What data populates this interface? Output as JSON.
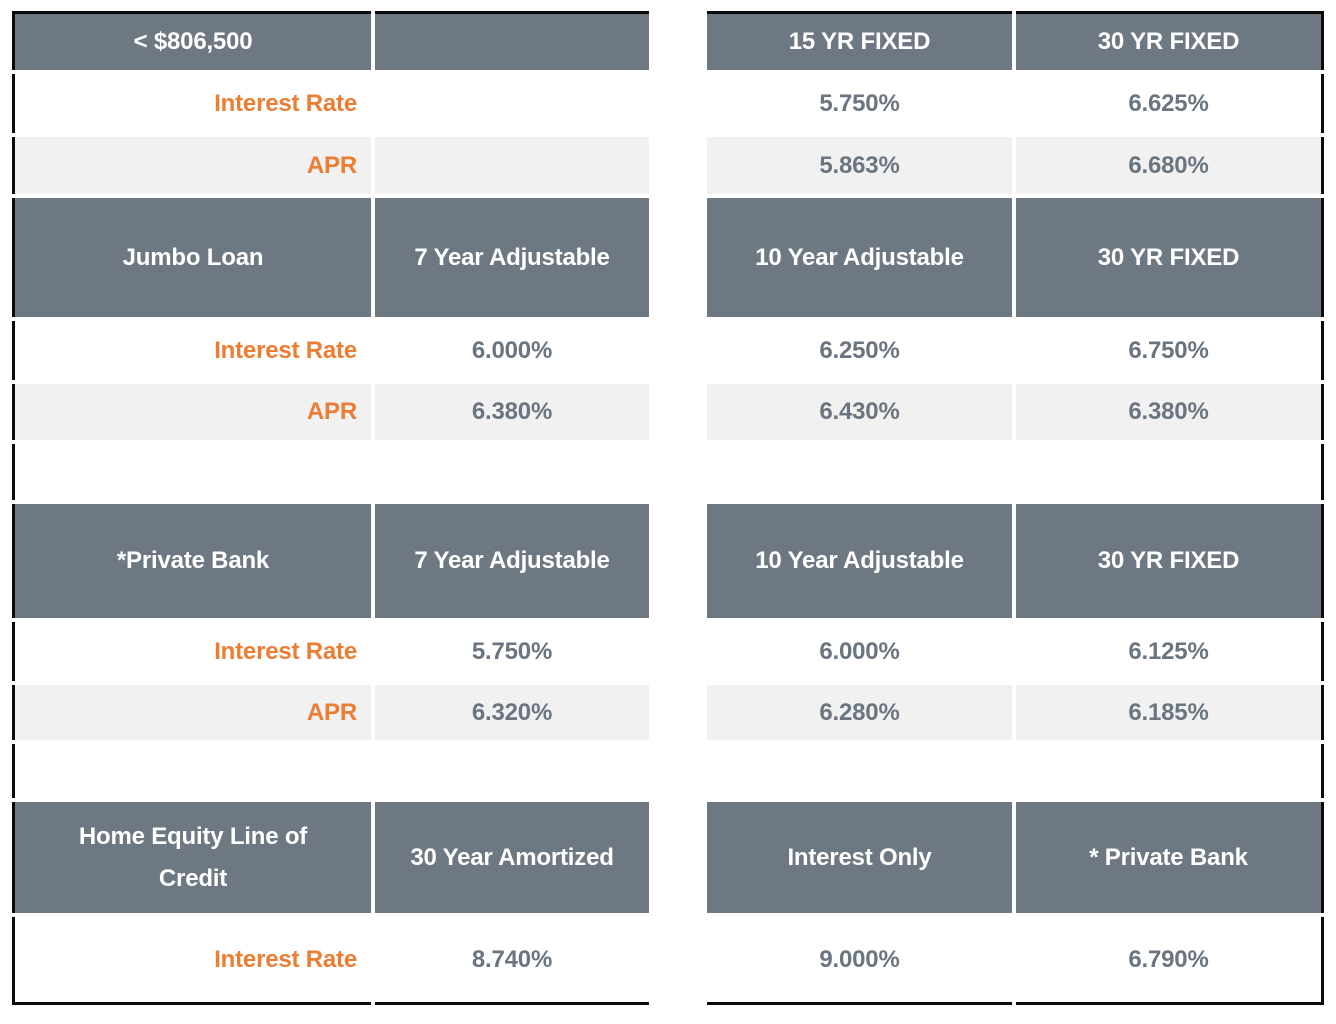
{
  "theme": {
    "header_bg": "#6E7883",
    "header_text": "#FFFFFF",
    "label_orange": "#EC7D33",
    "value_gray": "#6B7580",
    "alt_row_bg": "#F1F1F2",
    "outer_border": "#0A0A0A",
    "page_bg": "#FFFFFF"
  },
  "sections": {
    "conforming": {
      "title": "< $806,500",
      "columns": [
        "",
        "15 YR FIXED",
        "30 YR FIXED"
      ],
      "rows": [
        {
          "label": "Interest Rate",
          "values": [
            "",
            "5.750%",
            "6.625%"
          ]
        },
        {
          "label": "APR",
          "values": [
            "",
            "5.863%",
            "6.680%"
          ]
        }
      ]
    },
    "jumbo": {
      "title": "Jumbo Loan",
      "columns": [
        "7 Year Adjustable",
        "10 Year Adjustable",
        "30 YR FIXED"
      ],
      "rows": [
        {
          "label": "Interest Rate",
          "values": [
            "6.000%",
            "6.250%",
            "6.750%"
          ]
        },
        {
          "label": "APR",
          "values": [
            "6.380%",
            "6.430%",
            "6.380%"
          ]
        }
      ]
    },
    "private_bank": {
      "title": "*Private Bank",
      "columns": [
        "7 Year Adjustable",
        "10 Year Adjustable",
        "30 YR FIXED"
      ],
      "rows": [
        {
          "label": "Interest Rate",
          "values": [
            "5.750%",
            "6.000%",
            "6.125%"
          ]
        },
        {
          "label": "APR",
          "values": [
            "6.320%",
            "6.280%",
            "6.185%"
          ]
        }
      ]
    },
    "heloc": {
      "title": "Home Equity Line of Credit",
      "columns": [
        "30 Year Amortized",
        "Interest Only",
        "* Private Bank"
      ],
      "rows": [
        {
          "label": "Interest Rate",
          "values": [
            "8.740%",
            "9.000%",
            "6.790%"
          ]
        }
      ]
    }
  }
}
